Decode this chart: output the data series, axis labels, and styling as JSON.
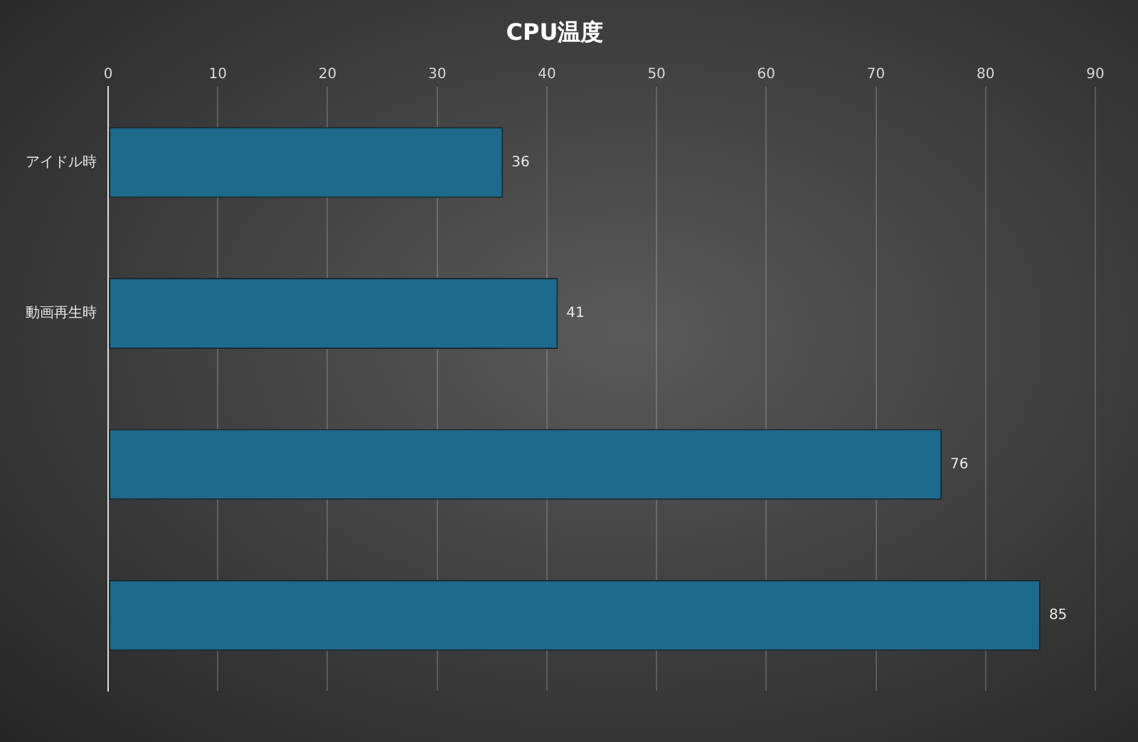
{
  "chart_data": {
    "type": "bar",
    "title": "CPU温度",
    "orientation": "horizontal",
    "categories": [
      "アイドル時",
      "動画再生時",
      null,
      null
    ],
    "values": [
      36,
      41,
      76,
      85
    ],
    "color": "#1d6a8c",
    "xlim": [
      0,
      90
    ],
    "xticks": [
      0,
      10,
      20,
      30,
      40,
      50,
      60,
      70,
      80,
      90
    ],
    "grid": "x",
    "data_labels": true,
    "legend": false
  }
}
